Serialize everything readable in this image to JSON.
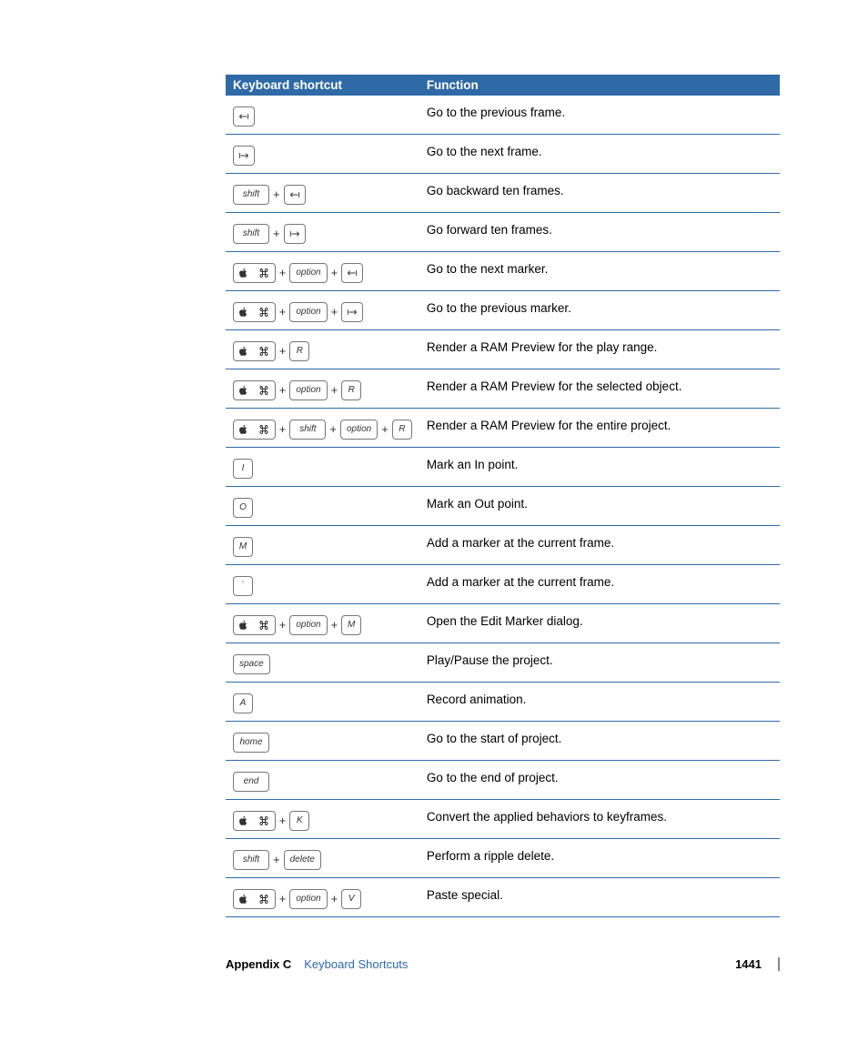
{
  "colors": {
    "header_bg": "#2f6aa7",
    "header_text": "#ffffff",
    "row_border": "#2f6aa7",
    "link_blue": "#2f6aa7",
    "key_border": "#777777",
    "background": "#ffffff"
  },
  "table": {
    "headers": [
      "Keyboard shortcut",
      "Function"
    ],
    "col_widths_pct": [
      34,
      66
    ],
    "header_fontsize": 13.5,
    "body_fontsize": 13.5,
    "rows": [
      {
        "keys": [
          [
            "arrow-left"
          ]
        ],
        "func": "Go to the previous frame."
      },
      {
        "keys": [
          [
            "arrow-right"
          ]
        ],
        "func": "Go to the next frame."
      },
      {
        "keys": [
          [
            "shift"
          ],
          [
            "arrow-left"
          ]
        ],
        "func": "Go backward ten frames."
      },
      {
        "keys": [
          [
            "shift"
          ],
          [
            "arrow-right"
          ]
        ],
        "func": "Go forward ten frames."
      },
      {
        "keys": [
          [
            "cmd"
          ],
          [
            "option"
          ],
          [
            "arrow-left"
          ]
        ],
        "func": "Go to the next marker."
      },
      {
        "keys": [
          [
            "cmd"
          ],
          [
            "option"
          ],
          [
            "arrow-right"
          ]
        ],
        "func": "Go to the previous marker."
      },
      {
        "keys": [
          [
            "cmd"
          ],
          [
            "R"
          ]
        ],
        "func": "Render a RAM Preview for the play range."
      },
      {
        "keys": [
          [
            "cmd"
          ],
          [
            "option"
          ],
          [
            "R"
          ]
        ],
        "func": "Render a RAM Preview for the selected object."
      },
      {
        "keys": [
          [
            "cmd"
          ],
          [
            "shift"
          ],
          [
            "option"
          ],
          [
            "R"
          ]
        ],
        "func": "Render a RAM Preview for the entire project."
      },
      {
        "keys": [
          [
            "I"
          ]
        ],
        "func": "Mark an In point."
      },
      {
        "keys": [
          [
            "O"
          ]
        ],
        "func": "Mark an Out point."
      },
      {
        "keys": [
          [
            "M"
          ]
        ],
        "func": "Add a marker at the current frame."
      },
      {
        "keys": [
          [
            "`"
          ]
        ],
        "func": "Add a marker at the current frame."
      },
      {
        "keys": [
          [
            "cmd"
          ],
          [
            "option"
          ],
          [
            "M"
          ]
        ],
        "func": "Open the Edit Marker dialog."
      },
      {
        "keys": [
          [
            "space"
          ]
        ],
        "func": "Play/Pause the project."
      },
      {
        "keys": [
          [
            "A"
          ]
        ],
        "func": "Record animation."
      },
      {
        "keys": [
          [
            "home"
          ]
        ],
        "func": "Go to the start of project."
      },
      {
        "keys": [
          [
            "end"
          ]
        ],
        "func": "Go to the end of project."
      },
      {
        "keys": [
          [
            "cmd"
          ],
          [
            "K"
          ]
        ],
        "func": "Convert the applied behaviors to keyframes."
      },
      {
        "keys": [
          [
            "shift"
          ],
          [
            "delete"
          ]
        ],
        "func": "Perform a ripple delete."
      },
      {
        "keys": [
          [
            "cmd"
          ],
          [
            "option"
          ],
          [
            "V"
          ]
        ],
        "func": "Paste special."
      }
    ]
  },
  "key_labels": {
    "shift": "shift",
    "option": "option",
    "space": "space",
    "home": "home",
    "end": "end",
    "delete": "delete"
  },
  "footer": {
    "appendix": "Appendix C",
    "title": "Keyboard Shortcuts",
    "page_number": "1441"
  }
}
